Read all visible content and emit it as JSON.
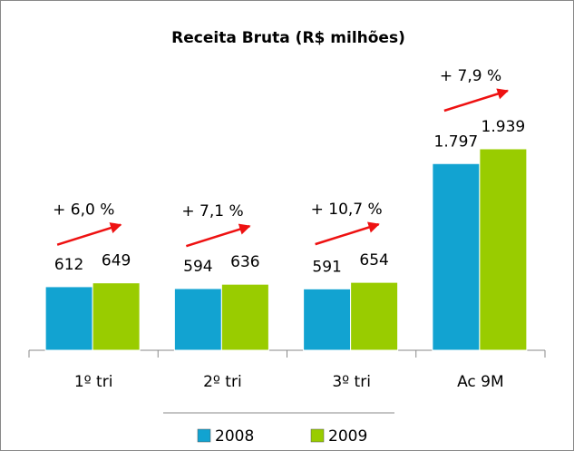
{
  "chart_data": {
    "type": "bar",
    "title": "Receita Bruta (R$ milhões)",
    "categories": [
      "1º tri",
      "2º tri",
      "3º tri",
      "Ac 9M"
    ],
    "series": [
      {
        "name": "2008",
        "color": "#12a3d1",
        "values": [
          612,
          594,
          591,
          1797
        ],
        "value_labels": [
          "612",
          "594",
          "591",
          "1.797"
        ]
      },
      {
        "name": "2009",
        "color": "#99cc00",
        "values": [
          649,
          636,
          654,
          1939
        ],
        "value_labels": [
          "649",
          "636",
          "654",
          "1.939"
        ]
      }
    ],
    "annotations": [
      "+ 6,0 %",
      "+ 7,1 %",
      "+ 10,7 %",
      "+ 7,9 %"
    ]
  }
}
